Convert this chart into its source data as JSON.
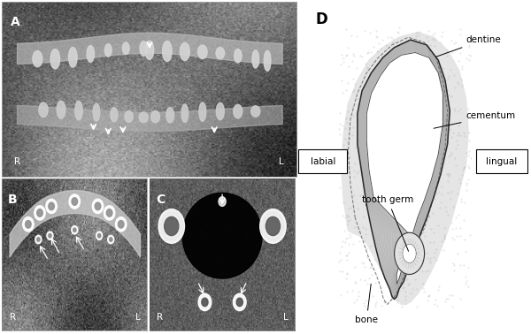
{
  "bg_color": "#ffffff",
  "panel_A_label": "A",
  "panel_B_label": "B",
  "panel_C_label": "C",
  "panel_D_label": "D",
  "label_R": "R",
  "label_L": "L",
  "label_labial": "labial",
  "label_lingual": "lingual",
  "label_dentine": "dentine",
  "label_cementum": "cementum",
  "label_tooth_germ": "tooth germ",
  "label_bone": "bone",
  "fig_width": 6.0,
  "fig_height": 3.78,
  "dpi": 100
}
